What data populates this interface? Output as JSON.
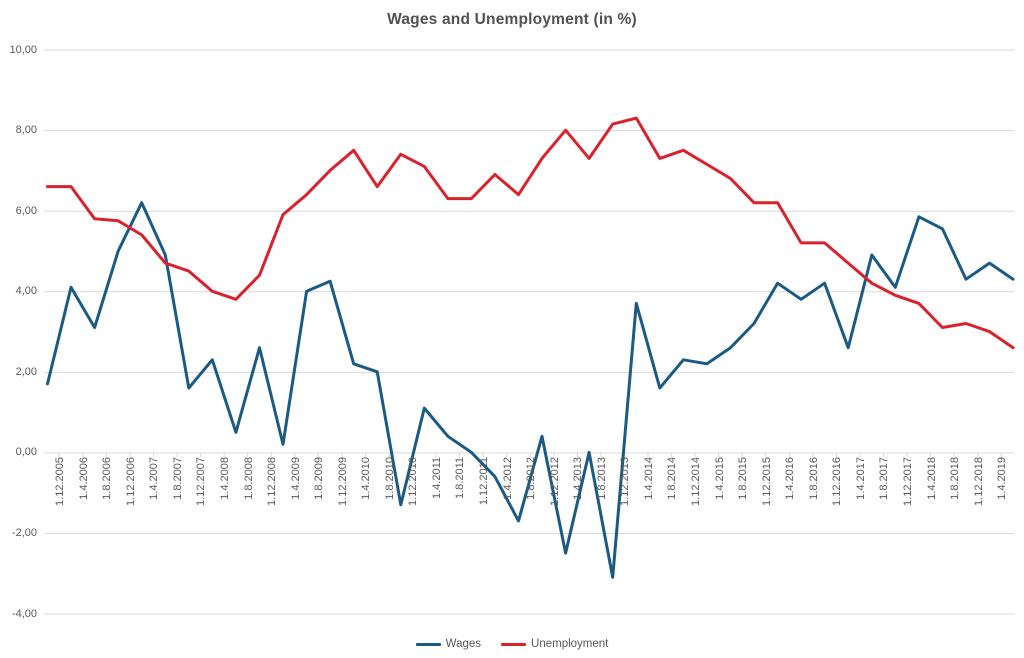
{
  "title": "Wages and Unemployment (in %)",
  "chart_data": {
    "type": "line",
    "title": "Wages and Unemployment (in %)",
    "xlabel": "",
    "ylabel": "",
    "ylim": [
      -4,
      10
    ],
    "ytick_step": 2,
    "ytick_labels": [
      "10,00",
      "8,00",
      "6,00",
      "4,00",
      "2,00",
      "0,00",
      "-2,00",
      "-4,00"
    ],
    "grid": "horizontal",
    "gridline_color": "#d9d9d9",
    "axis_text_color": "#595959",
    "legend_position": "bottom",
    "categories": [
      "1.12.2005",
      "1.4.2006",
      "1.8.2006",
      "1.12.2006",
      "1.4.2007",
      "1.8.2007",
      "1.12.2007",
      "1.4.2008",
      "1.8.2008",
      "1.12.2008",
      "1.4.2009",
      "1.8.2009",
      "1.12.2009",
      "1.4.2010",
      "1.8.2010",
      "1.12.2010",
      "1.4.2011",
      "1.8.2011",
      "1.12.2011",
      "1.4.2012",
      "1.8.2012",
      "1.12.2012",
      "1.4.2013",
      "1.8.2013",
      "1.12.2013",
      "1.4.2014",
      "1.8.2014",
      "1.12.2014",
      "1.4.2015",
      "1.8.2015",
      "1.12.2015",
      "1.4.2016",
      "1.8.2016",
      "1.12.2016",
      "1.4.2017",
      "1.8.2017",
      "1.12.2017",
      "1.4.2018",
      "1.8.2018",
      "1.12.2018",
      "1.4.2019",
      ""
    ],
    "series": [
      {
        "name": "Wages",
        "color": "#1a5a83",
        "values": [
          1.7,
          4.1,
          3.1,
          5.0,
          6.2,
          4.9,
          1.6,
          2.3,
          0.5,
          2.6,
          0.2,
          4.0,
          4.25,
          2.2,
          2.0,
          -1.3,
          1.1,
          0.4,
          0.0,
          -0.6,
          -1.7,
          0.4,
          -2.5,
          0.0,
          -3.1,
          3.7,
          1.6,
          2.3,
          2.2,
          2.6,
          3.2,
          4.2,
          3.8,
          4.2,
          2.6,
          4.9,
          4.1,
          5.85,
          5.55,
          4.3,
          4.7,
          4.3
        ]
      },
      {
        "name": "Unemployment",
        "color": "#d9222e",
        "values": [
          6.6,
          6.6,
          5.8,
          5.75,
          5.4,
          4.7,
          4.5,
          4.0,
          3.8,
          4.4,
          5.9,
          6.4,
          7.0,
          7.5,
          6.6,
          7.4,
          7.1,
          6.3,
          6.3,
          6.9,
          6.4,
          7.3,
          8.0,
          7.3,
          8.15,
          8.3,
          7.3,
          7.5,
          7.15,
          6.8,
          6.2,
          6.2,
          5.2,
          5.2,
          4.7,
          4.2,
          3.9,
          3.7,
          3.1,
          3.2,
          3.0,
          2.6
        ]
      }
    ]
  }
}
